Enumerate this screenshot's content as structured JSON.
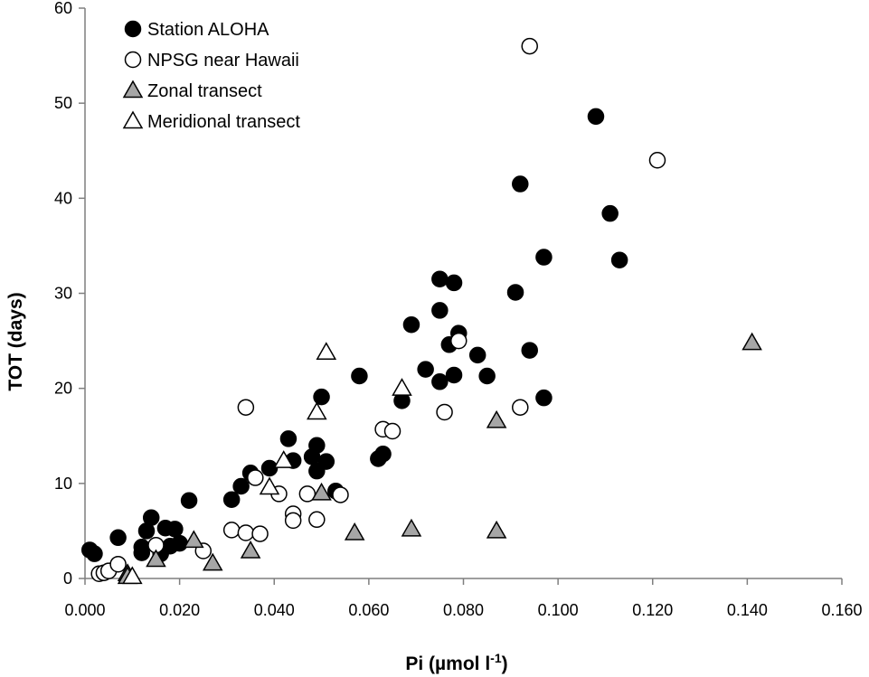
{
  "chart_data": {
    "type": "scatter",
    "xlabel": "Pi (µmol l",
    "xlabel_sup": "-1",
    "xlabel_close": ")",
    "ylabel": "TOT (days)",
    "xlim": [
      0,
      0.16
    ],
    "ylim": [
      0,
      60
    ],
    "xticks": [
      "0.000",
      "0.020",
      "0.040",
      "0.060",
      "0.080",
      "0.100",
      "0.120",
      "0.140",
      "0.160"
    ],
    "yticks": [
      "0",
      "10",
      "20",
      "30",
      "40",
      "50",
      "60"
    ],
    "legend_position": "top-left",
    "series": [
      {
        "name": "Station ALOHA",
        "marker": "circle",
        "fill": "#000000",
        "stroke": "#000000",
        "points": [
          [
            0.001,
            3.0
          ],
          [
            0.002,
            2.6
          ],
          [
            0.007,
            4.3
          ],
          [
            0.012,
            3.3
          ],
          [
            0.012,
            2.7
          ],
          [
            0.013,
            5.0
          ],
          [
            0.014,
            6.4
          ],
          [
            0.016,
            2.6
          ],
          [
            0.017,
            5.3
          ],
          [
            0.018,
            3.4
          ],
          [
            0.019,
            5.2
          ],
          [
            0.02,
            3.7
          ],
          [
            0.022,
            8.2
          ],
          [
            0.031,
            8.3
          ],
          [
            0.033,
            9.7
          ],
          [
            0.035,
            11.1
          ],
          [
            0.039,
            11.6
          ],
          [
            0.043,
            14.7
          ],
          [
            0.044,
            12.4
          ],
          [
            0.048,
            12.8
          ],
          [
            0.049,
            14.0
          ],
          [
            0.05,
            19.1
          ],
          [
            0.049,
            11.3
          ],
          [
            0.051,
            12.3
          ],
          [
            0.053,
            9.2
          ],
          [
            0.058,
            21.3
          ],
          [
            0.062,
            12.6
          ],
          [
            0.063,
            13.1
          ],
          [
            0.067,
            18.7
          ],
          [
            0.069,
            26.7
          ],
          [
            0.072,
            22.0
          ],
          [
            0.075,
            31.5
          ],
          [
            0.075,
            28.2
          ],
          [
            0.075,
            20.7
          ],
          [
            0.077,
            24.6
          ],
          [
            0.078,
            31.1
          ],
          [
            0.078,
            21.4
          ],
          [
            0.079,
            25.8
          ],
          [
            0.083,
            23.5
          ],
          [
            0.085,
            21.3
          ],
          [
            0.091,
            30.1
          ],
          [
            0.092,
            41.5
          ],
          [
            0.094,
            24.0
          ],
          [
            0.097,
            33.8
          ],
          [
            0.097,
            19.0
          ],
          [
            0.108,
            48.6
          ],
          [
            0.111,
            38.4
          ],
          [
            0.113,
            33.5
          ]
        ]
      },
      {
        "name": "NPSG near Hawaii",
        "marker": "circle",
        "fill": "#ffffff",
        "stroke": "#000000",
        "points": [
          [
            0.003,
            0.5
          ],
          [
            0.004,
            0.6
          ],
          [
            0.005,
            0.8
          ],
          [
            0.007,
            1.5
          ],
          [
            0.015,
            3.5
          ],
          [
            0.025,
            2.9
          ],
          [
            0.031,
            5.1
          ],
          [
            0.034,
            4.8
          ],
          [
            0.034,
            18.0
          ],
          [
            0.036,
            10.6
          ],
          [
            0.037,
            4.7
          ],
          [
            0.041,
            8.9
          ],
          [
            0.044,
            6.8
          ],
          [
            0.044,
            6.1
          ],
          [
            0.047,
            8.9
          ],
          [
            0.049,
            6.2
          ],
          [
            0.054,
            8.8
          ],
          [
            0.063,
            15.7
          ],
          [
            0.065,
            15.5
          ],
          [
            0.076,
            17.5
          ],
          [
            0.079,
            25.0
          ],
          [
            0.092,
            18.0
          ],
          [
            0.094,
            56.0
          ],
          [
            0.121,
            44.0
          ]
        ]
      },
      {
        "name": "Zonal transect",
        "marker": "triangle",
        "fill": "#a6a6a6",
        "stroke": "#000000",
        "points": [
          [
            0.009,
            0.5
          ],
          [
            0.009,
            0.2
          ],
          [
            0.015,
            2.0
          ],
          [
            0.023,
            4.0
          ],
          [
            0.027,
            1.6
          ],
          [
            0.035,
            2.9
          ],
          [
            0.05,
            9.0
          ],
          [
            0.057,
            4.8
          ],
          [
            0.069,
            5.2
          ],
          [
            0.087,
            16.6
          ],
          [
            0.087,
            5.0
          ],
          [
            0.141,
            24.8
          ]
        ]
      },
      {
        "name": "Meridional transect",
        "marker": "triangle",
        "fill": "#ffffff",
        "stroke": "#000000",
        "points": [
          [
            0.01,
            0.2
          ],
          [
            0.042,
            12.4
          ],
          [
            0.039,
            9.6
          ],
          [
            0.049,
            17.5
          ],
          [
            0.051,
            23.8
          ],
          [
            0.067,
            20.0
          ]
        ]
      }
    ]
  }
}
